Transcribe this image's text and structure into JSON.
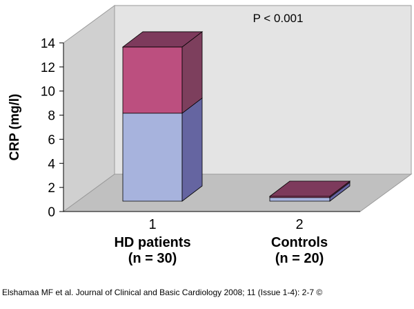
{
  "chart_data": {
    "type": "bar",
    "stacked": true,
    "style": "3d",
    "categories": [
      "1",
      "2"
    ],
    "group_labels": [
      [
        "HD patients",
        "(n = 30)"
      ],
      [
        "Controls",
        "(n = 20)"
      ]
    ],
    "series": [
      {
        "values": [
          7.3,
          0.3
        ]
      },
      {
        "values": [
          5.5,
          0.1
        ]
      }
    ],
    "ylabel": "CRP (mg/l)",
    "ylim": [
      0,
      14
    ],
    "yticks": [
      "0",
      "2",
      "4",
      "6",
      "8",
      "10",
      "12",
      "14"
    ],
    "annotation": "P < 0.001",
    "grid": false,
    "legend": "none"
  },
  "colors": {
    "series_front": [
      "#a7b3dd",
      "#bc4f7f"
    ],
    "series_side": [
      "#6565a1",
      "#7d3f5d"
    ],
    "series_top": [
      "#a7b3dd",
      "#7d3a5c"
    ],
    "back_wall": "#e4e4e4",
    "side_wall": "#d0d0d0",
    "floor": "#c0c0c0"
  },
  "citation": "Elshamaa MF et al. Journal of Clinical and Basic Cardiology 2008; 11 (Issue 1-4): 2-7 ©"
}
